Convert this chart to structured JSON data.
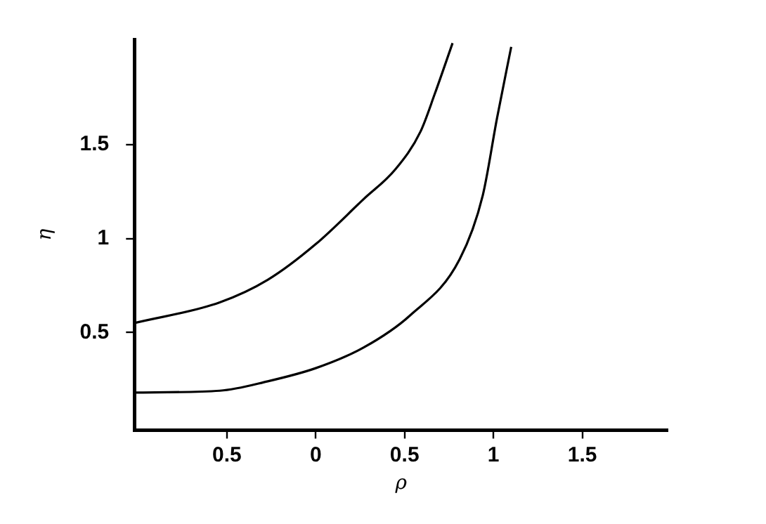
{
  "chart_data": {
    "type": "line",
    "xlabel": "ρ",
    "ylabel": "η",
    "xlim": [
      -1.02,
      1.98
    ],
    "ylim": [
      -0.02,
      2.06
    ],
    "xticks": [
      {
        "value": -0.5,
        "label": "0.5"
      },
      0,
      0.5,
      1,
      1.5
    ],
    "yticks": [
      0.5,
      1,
      1.5
    ],
    "grid": false,
    "legend": false,
    "marker": "none",
    "line_style": "solid",
    "series": [
      {
        "color": "#000000",
        "x": [
          -1.02,
          -0.54,
          -0.27,
          0,
          0.27,
          0.45,
          0.59,
          0.67,
          0.77
        ],
        "values": [
          0.55,
          0.66,
          0.78,
          0.97,
          1.21,
          1.37,
          1.57,
          1.77,
          2.04
        ]
      },
      {
        "color": "#000000",
        "x": [
          -1.02,
          -0.54,
          -0.27,
          0,
          0.27,
          0.53,
          0.81,
          0.94,
          1.02,
          1.1
        ],
        "values": [
          0.18,
          0.19,
          0.24,
          0.31,
          0.42,
          0.59,
          0.89,
          1.23,
          1.64,
          2.02
        ]
      }
    ]
  }
}
